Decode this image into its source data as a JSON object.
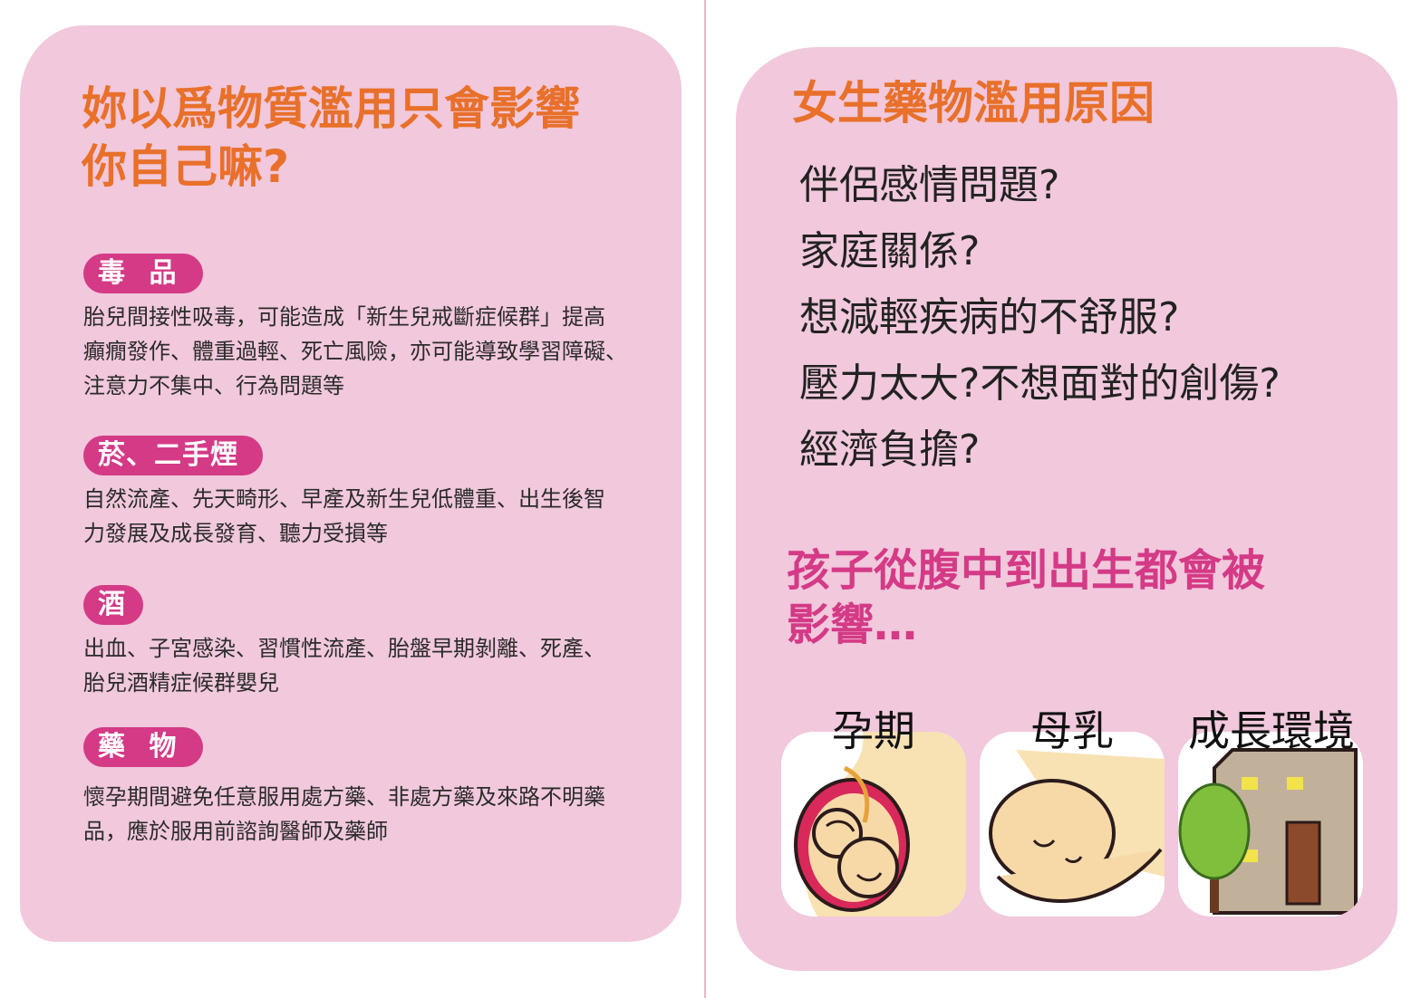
{
  "left": {
    "title_line1": "妳以爲物質濫用只會影響",
    "title_line2": "你自己嘛?",
    "sections": [
      {
        "tag": "毒 品",
        "lines": [
          "胎兒間接性吸毒，可能造成「新生兒戒斷症候群」提高",
          "癲癇發作、體重過輕、死亡風險，亦可能導致學習障礙、",
          "注意力不集中、行為問題等"
        ]
      },
      {
        "tag": "菸、二手煙",
        "lines": [
          "自然流產、先天畸形、早產及新生兒低體重、出生後智",
          "力發展及成長發育、聽力受損等"
        ]
      },
      {
        "tag": "酒",
        "lines": [
          "出血、子宮感染、習慣性流產、胎盤早期剝離、死產、",
          "胎兒酒精症候群嬰兒"
        ]
      },
      {
        "tag": "藥 物",
        "lines": [
          "懷孕期間避免任意服用處方藥、非處方藥及來路不明藥",
          "品，應於服用前諮詢醫師及藥師"
        ]
      }
    ]
  },
  "right": {
    "title": "女生藥物濫用原因",
    "reasons": [
      "伴侶感情問題?",
      "家庭關係?",
      "想減輕疾病的不舒服?",
      "壓力太大?不想面對的創傷?",
      "經濟負擔?"
    ],
    "impact_line1": "孩子從腹中到出生都會被",
    "impact_line2": "影響…",
    "images": [
      {
        "label": "孕期",
        "icon": "pregnancy-fetus-icon"
      },
      {
        "label": "母乳",
        "icon": "breastfeeding-baby-icon"
      },
      {
        "label": "成長環境",
        "icon": "house-tree-icon"
      }
    ]
  },
  "colors": {
    "panel": "#f1c8dc",
    "orange": "#e8702a",
    "magenta": "#d43a86",
    "text": "#2b2b2b"
  }
}
